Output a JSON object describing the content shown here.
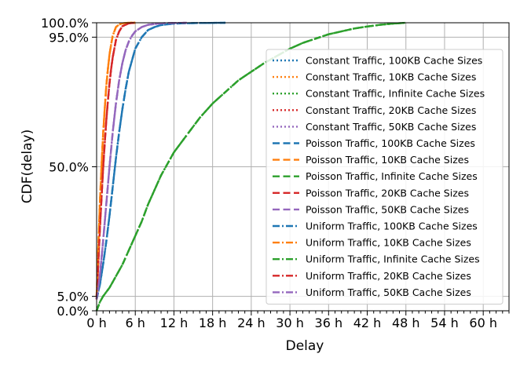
{
  "chart_data": {
    "type": "line",
    "title": "",
    "xlabel": "Delay",
    "ylabel": "CDF(delay)",
    "xlim_hours": [
      0,
      64
    ],
    "ylim": [
      0,
      100
    ],
    "x_ticks": [
      "0 h",
      "6 h",
      "12 h",
      "18 h",
      "24 h",
      "30 h",
      "36 h",
      "42 h",
      "48 h",
      "54 h",
      "60 h"
    ],
    "x_tick_values": [
      0,
      6,
      12,
      18,
      24,
      30,
      36,
      42,
      48,
      54,
      60
    ],
    "y_ticks": [
      "0.0%",
      "5.0%",
      "50.0%",
      "95.0%",
      "100.0%"
    ],
    "y_tick_values": [
      0,
      5,
      50,
      95,
      100
    ],
    "grid": true,
    "legend_position": "right",
    "series": [
      {
        "name": "Constant Traffic, 100KB Cache Sizes",
        "color": "#1f77b4",
        "dash": "dotted",
        "x": [
          0,
          0.5,
          1,
          1.5,
          2,
          2.5,
          3,
          3.5,
          4,
          4.5,
          5,
          5.5,
          6,
          7,
          8,
          9,
          10,
          12,
          15,
          20
        ],
        "y": [
          4,
          9,
          16,
          24,
          33,
          43,
          53,
          62,
          70,
          77,
          83,
          87,
          91,
          95,
          97.5,
          98.5,
          99.2,
          99.7,
          99.9,
          100
        ]
      },
      {
        "name": "Constant Traffic, 10KB Cache Sizes",
        "color": "#ff7f0e",
        "dash": "dotted",
        "x": [
          0,
          0.25,
          0.5,
          0.75,
          1,
          1.25,
          1.5,
          1.75,
          2,
          2.25,
          2.5,
          3,
          3.5,
          4,
          5,
          6
        ],
        "y": [
          5,
          22,
          37,
          50,
          61,
          70,
          78,
          84,
          89,
          92.5,
          95.5,
          98.5,
          99.4,
          99.8,
          100,
          100
        ]
      },
      {
        "name": "Constant Traffic, Infinite Cache Sizes",
        "color": "#2ca02c",
        "dash": "dotted",
        "x": [
          0,
          0.5,
          1,
          2,
          3,
          4,
          5,
          6,
          7,
          8,
          9,
          10,
          11,
          12,
          14,
          16,
          18,
          20,
          22,
          24,
          26,
          28,
          30,
          32,
          34,
          36,
          38,
          40,
          42,
          44,
          46,
          48
        ],
        "y": [
          0,
          3,
          5,
          8,
          12,
          16,
          21,
          26,
          31,
          37,
          42,
          47,
          51,
          55,
          61,
          67,
          72,
          76,
          80,
          83,
          86,
          88.5,
          91,
          93,
          94.5,
          96,
          97,
          98,
          98.7,
          99.3,
          99.7,
          100
        ]
      },
      {
        "name": "Constant Traffic, 20KB Cache Sizes",
        "color": "#d62728",
        "dash": "dotted",
        "x": [
          0,
          0.25,
          0.5,
          0.75,
          1,
          1.25,
          1.5,
          1.75,
          2,
          2.25,
          2.5,
          2.75,
          3,
          3.5,
          4,
          5,
          6
        ],
        "y": [
          4,
          16,
          28,
          39,
          49,
          58,
          66,
          73,
          79,
          84,
          88,
          91,
          94,
          97,
          98.8,
          99.8,
          100
        ]
      },
      {
        "name": "Constant Traffic, 50KB Cache Sizes",
        "color": "#9467bd",
        "dash": "dotted",
        "x": [
          0,
          0.5,
          1,
          1.5,
          2,
          2.5,
          3,
          3.5,
          4,
          4.5,
          5,
          5.5,
          6,
          7,
          8,
          10,
          14
        ],
        "y": [
          4,
          12,
          24,
          37,
          50,
          62,
          72,
          80,
          86,
          90.5,
          93.5,
          95.5,
          97,
          98.5,
          99.3,
          99.8,
          100
        ]
      },
      {
        "name": "Poisson Traffic, 100KB Cache Sizes",
        "color": "#1f77b4",
        "dash": "dashed",
        "x": [
          0,
          0.5,
          1,
          1.5,
          2,
          2.5,
          3,
          3.5,
          4,
          4.5,
          5,
          5.5,
          6,
          7,
          8,
          9,
          10,
          12,
          15,
          20
        ],
        "y": [
          4,
          9,
          16,
          24,
          33,
          43,
          53,
          62,
          70,
          77,
          83,
          87,
          91,
          95,
          97.5,
          98.5,
          99.2,
          99.7,
          99.9,
          100
        ]
      },
      {
        "name": "Poisson Traffic, 10KB Cache Sizes",
        "color": "#ff7f0e",
        "dash": "dashed",
        "x": [
          0,
          0.25,
          0.5,
          0.75,
          1,
          1.25,
          1.5,
          1.75,
          2,
          2.25,
          2.5,
          3,
          3.5,
          4,
          5,
          6
        ],
        "y": [
          5,
          22,
          37,
          50,
          61,
          70,
          78,
          84,
          89,
          92.5,
          95.5,
          98.5,
          99.4,
          99.8,
          100,
          100
        ]
      },
      {
        "name": "Poisson Traffic, Infinite Cache Sizes",
        "color": "#2ca02c",
        "dash": "dashed",
        "x": [
          0,
          0.5,
          1,
          2,
          3,
          4,
          5,
          6,
          7,
          8,
          9,
          10,
          11,
          12,
          14,
          16,
          18,
          20,
          22,
          24,
          26,
          28,
          30,
          32,
          34,
          36,
          38,
          40,
          42,
          44,
          46,
          48
        ],
        "y": [
          0,
          3,
          5,
          8,
          12,
          16,
          21,
          26,
          31,
          37,
          42,
          47,
          51,
          55,
          61,
          67,
          72,
          76,
          80,
          83,
          86,
          88.5,
          91,
          93,
          94.5,
          96,
          97,
          98,
          98.7,
          99.3,
          99.7,
          100
        ]
      },
      {
        "name": "Poisson Traffic, 20KB Cache Sizes",
        "color": "#d62728",
        "dash": "dashed",
        "x": [
          0,
          0.25,
          0.5,
          0.75,
          1,
          1.25,
          1.5,
          1.75,
          2,
          2.25,
          2.5,
          2.75,
          3,
          3.5,
          4,
          5,
          6
        ],
        "y": [
          4,
          16,
          28,
          39,
          49,
          58,
          66,
          73,
          79,
          84,
          88,
          91,
          94,
          97,
          98.8,
          99.8,
          100
        ]
      },
      {
        "name": "Poisson Traffic, 50KB Cache Sizes",
        "color": "#9467bd",
        "dash": "dashed",
        "x": [
          0,
          0.5,
          1,
          1.5,
          2,
          2.5,
          3,
          3.5,
          4,
          4.5,
          5,
          5.5,
          6,
          7,
          8,
          10,
          14
        ],
        "y": [
          4,
          12,
          24,
          37,
          50,
          62,
          72,
          80,
          86,
          90.5,
          93.5,
          95.5,
          97,
          98.5,
          99.3,
          99.8,
          100
        ]
      },
      {
        "name": "Uniform Traffic, 100KB Cache Sizes",
        "color": "#1f77b4",
        "dash": "dashdot",
        "x": [
          0,
          0.5,
          1,
          1.5,
          2,
          2.5,
          3,
          3.5,
          4,
          4.5,
          5,
          5.5,
          6,
          7,
          8,
          9,
          10,
          12,
          15,
          20
        ],
        "y": [
          4,
          9,
          16,
          24,
          33,
          43,
          53,
          62,
          70,
          77,
          83,
          87,
          91,
          95,
          97.5,
          98.5,
          99.2,
          99.7,
          99.9,
          100
        ]
      },
      {
        "name": "Uniform Traffic, 10KB Cache Sizes",
        "color": "#ff7f0e",
        "dash": "dashdot",
        "x": [
          0,
          0.25,
          0.5,
          0.75,
          1,
          1.25,
          1.5,
          1.75,
          2,
          2.25,
          2.5,
          3,
          3.5,
          4,
          5,
          6
        ],
        "y": [
          5,
          22,
          37,
          50,
          61,
          70,
          78,
          84,
          89,
          92.5,
          95.5,
          98.5,
          99.4,
          99.8,
          100,
          100
        ]
      },
      {
        "name": "Uniform Traffic, Infinite Cache Sizes",
        "color": "#2ca02c",
        "dash": "dashdot",
        "x": [
          0,
          0.5,
          1,
          2,
          3,
          4,
          5,
          6,
          7,
          8,
          9,
          10,
          11,
          12,
          14,
          16,
          18,
          20,
          22,
          24,
          26,
          28,
          30,
          32,
          34,
          36,
          38,
          40,
          42,
          44,
          46,
          48
        ],
        "y": [
          0,
          3,
          5,
          8,
          12,
          16,
          21,
          26,
          31,
          37,
          42,
          47,
          51,
          55,
          61,
          67,
          72,
          76,
          80,
          83,
          86,
          88.5,
          91,
          93,
          94.5,
          96,
          97,
          98,
          98.7,
          99.3,
          99.7,
          100
        ]
      },
      {
        "name": "Uniform Traffic, 20KB Cache Sizes",
        "color": "#d62728",
        "dash": "dashdot",
        "x": [
          0,
          0.25,
          0.5,
          0.75,
          1,
          1.25,
          1.5,
          1.75,
          2,
          2.25,
          2.5,
          2.75,
          3,
          3.5,
          4,
          5,
          6
        ],
        "y": [
          4,
          16,
          28,
          39,
          49,
          58,
          66,
          73,
          79,
          84,
          88,
          91,
          94,
          97,
          98.8,
          99.8,
          100
        ]
      },
      {
        "name": "Uniform Traffic, 50KB Cache Sizes",
        "color": "#9467bd",
        "dash": "dashdot",
        "x": [
          0,
          0.5,
          1,
          1.5,
          2,
          2.5,
          3,
          3.5,
          4,
          4.5,
          5,
          5.5,
          6,
          7,
          8,
          10,
          14
        ],
        "y": [
          4,
          12,
          24,
          37,
          50,
          62,
          72,
          80,
          86,
          90.5,
          93.5,
          95.5,
          97,
          98.5,
          99.3,
          99.8,
          100
        ]
      }
    ]
  }
}
